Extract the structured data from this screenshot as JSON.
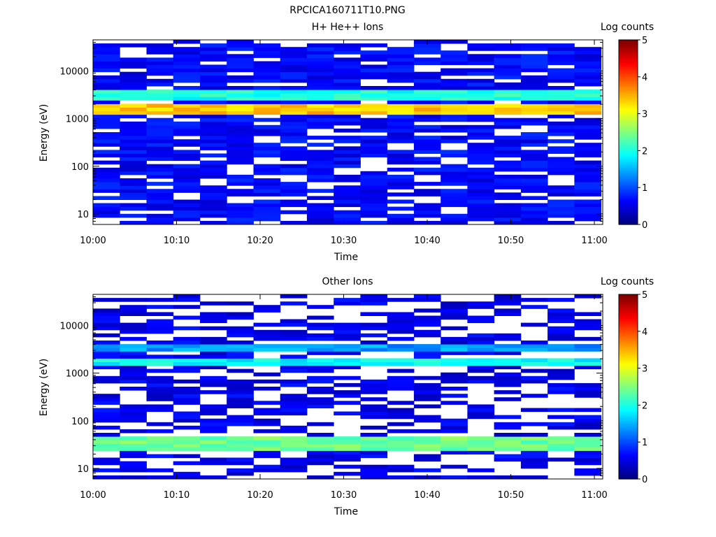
{
  "figure": {
    "title": "RPCICA160711T10.PNG"
  },
  "panels": [
    {
      "title": "H+ He++ Ions",
      "colorbar_label": "Log counts"
    },
    {
      "title": "Other Ions",
      "colorbar_label": "Log counts"
    }
  ],
  "chart_data": [
    {
      "type": "heatmap",
      "title": "H+ He++ Ions",
      "xlabel": "Time",
      "ylabel": "Energy (eV)",
      "x_ticks": [
        "10:00",
        "10:10",
        "10:20",
        "10:30",
        "10:40",
        "10:50",
        "11:00"
      ],
      "xlim": [
        "10:00",
        "11:01"
      ],
      "y_scale": "log",
      "y_ticks": [
        10,
        100,
        1000,
        10000
      ],
      "ylim": [
        6,
        45000
      ],
      "colorbar": {
        "label": "Log counts",
        "range": [
          0,
          5
        ],
        "ticks": [
          0,
          1,
          2,
          3,
          4,
          5
        ],
        "colormap": "jet"
      },
      "time_bins_start_min": [
        0,
        3.2,
        6.4,
        9.6,
        12.8,
        16,
        19.2,
        22.4,
        25.6,
        28.8,
        32,
        35.2,
        38.4,
        41.6,
        44.8,
        48,
        51.2,
        54.4,
        57.6
      ],
      "peak_bands": [
        {
          "energy_eV": [
            1200,
            2200
          ],
          "log_counts": 3.4
        },
        {
          "energy_eV": [
            2600,
            4200
          ],
          "log_counts": 2.0
        }
      ],
      "background_log_counts": 0.4
    },
    {
      "type": "heatmap",
      "title": "Other Ions",
      "xlabel": "Time",
      "ylabel": "Energy (eV)",
      "x_ticks": [
        "10:00",
        "10:10",
        "10:20",
        "10:30",
        "10:40",
        "10:50",
        "11:00"
      ],
      "xlim": [
        "10:00",
        "11:01"
      ],
      "y_scale": "log",
      "y_ticks": [
        10,
        100,
        1000,
        10000
      ],
      "ylim": [
        6,
        45000
      ],
      "colorbar": {
        "label": "Log counts",
        "range": [
          0,
          5
        ],
        "ticks": [
          0,
          1,
          2,
          3,
          4,
          5
        ],
        "colormap": "jet"
      },
      "time_bins_start_min": [
        0,
        3.2,
        6.4,
        9.6,
        12.8,
        16,
        19.2,
        22.4,
        25.6,
        28.8,
        32,
        35.2,
        38.4,
        41.6,
        44.8,
        48,
        51.2,
        54.4,
        57.6
      ],
      "peak_bands": [
        {
          "energy_eV": [
            1400,
            2100
          ],
          "log_counts": 1.9
        },
        {
          "energy_eV": [
            2800,
            4000
          ],
          "log_counts": 1.4
        },
        {
          "energy_eV": [
            25,
            45
          ],
          "log_counts": 2.4
        }
      ],
      "background_log_counts": 0.3
    }
  ]
}
